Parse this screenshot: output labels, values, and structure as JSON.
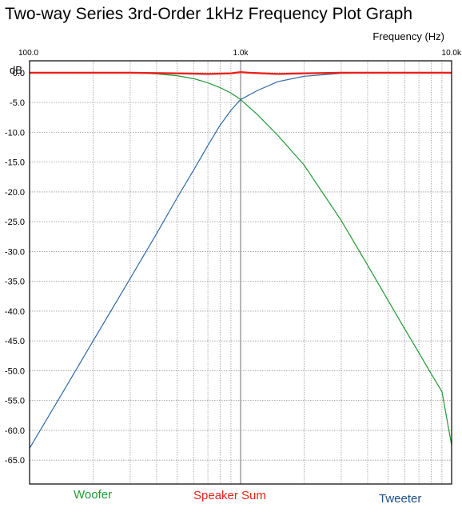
{
  "chart_data": {
    "type": "line",
    "title": "Two-way Series 3rd-Order 1kHz Frequency Plot Graph",
    "xlabel": "Frequency  (Hz)",
    "ylabel": "dB",
    "xscale": "log",
    "xlim": [
      100,
      10000
    ],
    "ylim": [
      -69,
      2
    ],
    "grid": true,
    "x_tick_labels": [
      "100.0",
      "1.0k",
      "10.0k"
    ],
    "y_tick_labels": [
      "0.0",
      "-5.0",
      "-10.0",
      "-15.0",
      "-20.0",
      "-25.0",
      "-30.0",
      "-35.0",
      "-40.0",
      "-45.0",
      "-50.0",
      "-55.0",
      "-60.0",
      "-65.0"
    ],
    "legend_placement": "bottom",
    "series": [
      {
        "name": "Woofer",
        "color": "#229933",
        "x": [
          100,
          200,
          300,
          400,
          500,
          600,
          700,
          800,
          900,
          1000,
          1200,
          1500,
          2000,
          3000,
          4000,
          5000,
          6000,
          7000,
          8000,
          9000,
          10000
        ],
        "y": [
          0.0,
          0.0,
          0.0,
          -0.2,
          -0.5,
          -1.0,
          -1.7,
          -2.5,
          -3.4,
          -4.5,
          -7.0,
          -10.5,
          -15.5,
          -24.8,
          -32.3,
          -38.2,
          -43.0,
          -47.0,
          -50.5,
          -53.5,
          -62.5
        ]
      },
      {
        "name": "Tweeter",
        "color": "#2f6aa8",
        "x": [
          100,
          150,
          200,
          300,
          400,
          500,
          600,
          700,
          800,
          900,
          1000,
          1200,
          1500,
          2000,
          3000,
          5000,
          10000
        ],
        "y": [
          -63.0,
          -52.5,
          -45.0,
          -34.5,
          -27.0,
          -21.0,
          -16.3,
          -12.2,
          -8.8,
          -6.3,
          -4.5,
          -3.0,
          -1.5,
          -0.6,
          -0.1,
          0.0,
          0.0
        ]
      },
      {
        "name": "Speaker Sum",
        "color": "#e8231c",
        "x": [
          100,
          300,
          500,
          700,
          900,
          1000,
          1100,
          1500,
          2000,
          3000,
          10000
        ],
        "y": [
          0.0,
          0.0,
          -0.1,
          -0.2,
          -0.1,
          0.1,
          0.0,
          -0.2,
          -0.1,
          0.0,
          0.0
        ]
      }
    ]
  }
}
